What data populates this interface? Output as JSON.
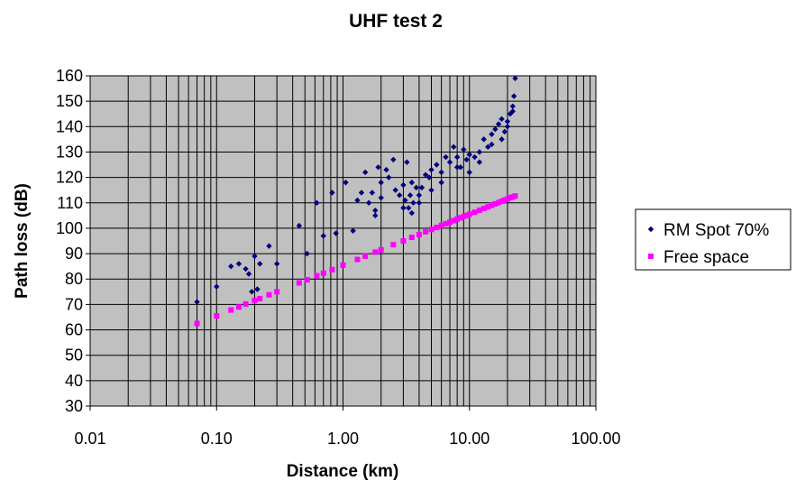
{
  "chart_data": {
    "type": "scatter",
    "title": "UHF test 2",
    "xlabel": "Distance (km)",
    "ylabel": "Path loss (dB)",
    "x_scale": "log",
    "xlim": [
      0.01,
      100
    ],
    "ylim": [
      30,
      160
    ],
    "x_tick_labels": [
      "0.01",
      "0.10",
      "1.00",
      "10.00",
      "100.00"
    ],
    "y_ticks": [
      30,
      40,
      50,
      60,
      70,
      80,
      90,
      100,
      110,
      120,
      130,
      140,
      150,
      160
    ],
    "grid": true,
    "plot_background": "#c0c0c0",
    "legend_position": "right",
    "series": [
      {
        "name": "RM Spot 70%",
        "color": "#000080",
        "marker": "diamond",
        "x": [
          0.07,
          0.1,
          0.13,
          0.15,
          0.17,
          0.18,
          0.19,
          0.2,
          0.21,
          0.22,
          0.26,
          0.3,
          0.45,
          0.52,
          0.62,
          0.7,
          0.82,
          0.88,
          1.05,
          1.2,
          1.3,
          1.4,
          1.5,
          1.6,
          1.7,
          1.8,
          1.9,
          2.0,
          2.2,
          2.5,
          2.6,
          2.8,
          3.0,
          3.1,
          3.2,
          3.3,
          3.4,
          3.5,
          3.6,
          3.8,
          4.0,
          4.2,
          4.5,
          4.8,
          5.0,
          5.5,
          6.0,
          6.5,
          7.0,
          7.5,
          8.0,
          8.5,
          9.0,
          9.5,
          10.0,
          11.0,
          12.0,
          13.0,
          14.0,
          15.0,
          16.0,
          17.0,
          18.0,
          19.0,
          20.0,
          21.0,
          22.0,
          22.5,
          23.0,
          3.0,
          3.5,
          4.0,
          5.0,
          6.0,
          8.0,
          10.0,
          12.0,
          15.0,
          18.0,
          20.0,
          22.0,
          2.0,
          1.8,
          2.3
        ],
        "y": [
          71,
          77,
          85,
          86,
          84,
          82,
          75,
          89,
          76,
          86,
          93,
          86,
          101,
          90,
          110,
          97,
          114,
          98,
          118,
          99,
          111,
          114,
          122,
          110,
          114,
          105,
          124,
          112,
          123,
          127,
          115,
          113,
          117,
          111,
          126,
          108,
          113,
          118,
          110,
          116,
          113,
          116,
          121,
          120,
          123,
          125,
          122,
          128,
          126,
          132,
          128,
          124,
          131,
          127,
          129,
          128,
          130,
          135,
          132,
          137,
          139,
          141,
          143,
          138,
          142,
          145,
          148,
          152,
          159,
          108,
          106,
          110,
          115,
          118,
          124,
          122,
          126,
          133,
          135,
          140,
          146,
          118,
          107,
          120
        ]
      },
      {
        "name": "Free space",
        "color": "#ff00ff",
        "marker": "square",
        "x": [
          0.07,
          0.1,
          0.13,
          0.15,
          0.17,
          0.2,
          0.22,
          0.26,
          0.3,
          0.45,
          0.52,
          0.62,
          0.7,
          0.82,
          1.0,
          1.3,
          1.5,
          1.8,
          2.0,
          2.5,
          3.0,
          3.5,
          4.0,
          4.5,
          5.0,
          5.5,
          6.0,
          6.5,
          7.0,
          7.5,
          8.0,
          8.5,
          9.0,
          9.5,
          10.0,
          11.0,
          12.0,
          13.0,
          14.0,
          15.0,
          16.0,
          17.0,
          18.0,
          19.0,
          20.0,
          21.0,
          22.0,
          23.0
        ],
        "y": [
          62.5,
          65.5,
          67.8,
          69.0,
          70.2,
          71.6,
          72.3,
          73.8,
          75.0,
          78.5,
          79.7,
          81.3,
          82.3,
          83.7,
          85.5,
          87.7,
          89.0,
          90.6,
          91.5,
          93.5,
          95.0,
          96.4,
          97.5,
          98.6,
          99.5,
          100.3,
          101.1,
          101.8,
          102.4,
          103.0,
          103.6,
          104.1,
          104.6,
          105.0,
          105.5,
          106.3,
          107.1,
          107.8,
          108.4,
          109.0,
          109.6,
          110.1,
          110.6,
          111.1,
          111.5,
          112.0,
          112.3,
          112.7
        ]
      }
    ]
  }
}
